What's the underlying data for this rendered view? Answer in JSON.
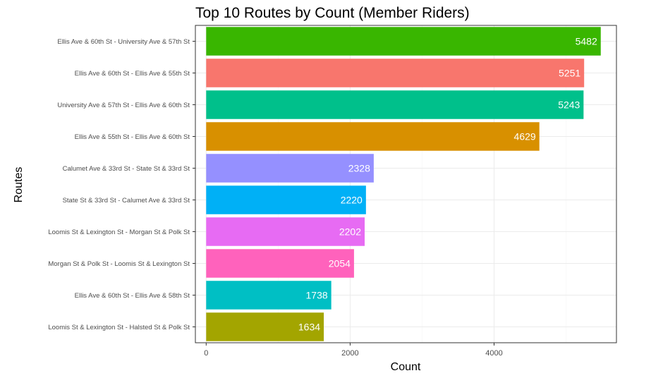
{
  "chart_data": {
    "type": "bar",
    "orientation": "horizontal",
    "title": "Top 10 Routes by Count (Member Riders)",
    "xlabel": "Count",
    "ylabel": "Routes",
    "xlim": [
      -150,
      5700
    ],
    "x_ticks": [
      0,
      2000,
      4000
    ],
    "x_tick_labels": [
      "0",
      "2000",
      "4000"
    ],
    "grid": true,
    "legend": "none",
    "categories": [
      "Ellis Ave & 60th St  -  University Ave & 57th St",
      "Ellis Ave & 60th St  -  Ellis Ave & 55th St",
      "University Ave & 57th St  -  Ellis Ave & 60th St",
      "Ellis Ave & 55th St  -  Ellis Ave & 60th St",
      "Calumet Ave & 33rd St  -  State St & 33rd St",
      "State St & 33rd St  -  Calumet Ave & 33rd St",
      "Loomis St & Lexington St  -  Morgan St & Polk St",
      "Morgan St & Polk St  -  Loomis St & Lexington St",
      "Ellis Ave & 60th St  -  Ellis Ave & 58th St",
      "Loomis St & Lexington St  -  Halsted St & Polk St"
    ],
    "values": [
      5482,
      5251,
      5243,
      4629,
      2328,
      2220,
      2202,
      2054,
      1738,
      1634
    ],
    "data_labels": [
      "5482",
      "5251",
      "5243",
      "4629",
      "2328",
      "2220",
      "2202",
      "2054",
      "1738",
      "1634"
    ],
    "colors": [
      "#39B600",
      "#F8766D",
      "#00C08B",
      "#D89000",
      "#9590FF",
      "#00B0F6",
      "#E76BF3",
      "#FF62BC",
      "#00BFC4",
      "#A3A500"
    ]
  }
}
